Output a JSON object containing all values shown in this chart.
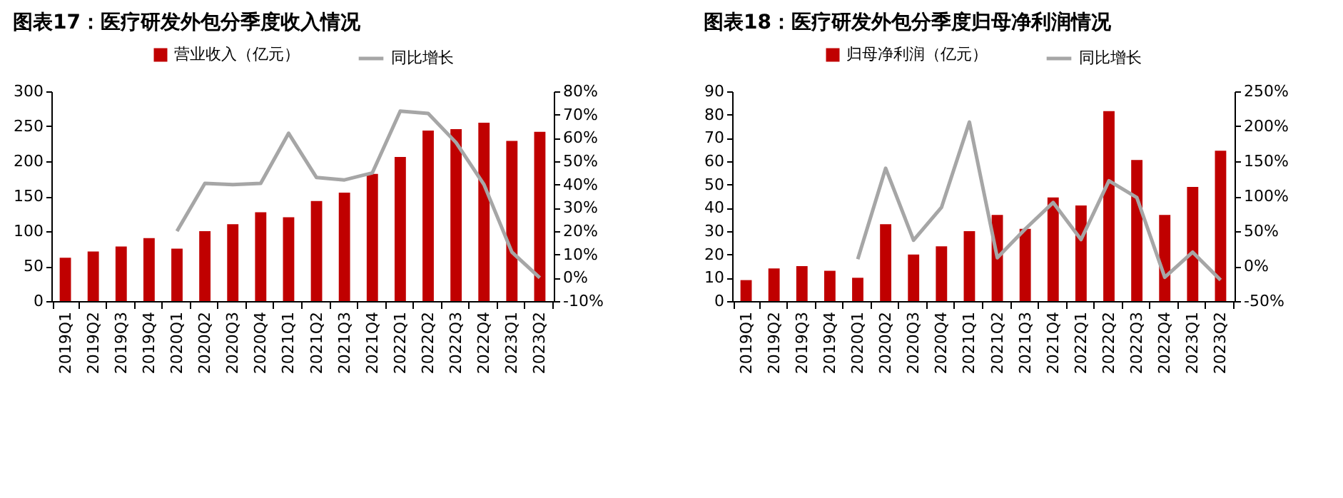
{
  "chart_data": [
    {
      "type": "bar",
      "title": "图表17：医疗研发外包分季度收入情况",
      "categories": [
        "2019Q1",
        "2019Q2",
        "2019Q3",
        "2019Q4",
        "2020Q1",
        "2020Q2",
        "2020Q3",
        "2020Q4",
        "2021Q1",
        "2021Q2",
        "2021Q3",
        "2021Q4",
        "2022Q1",
        "2022Q2",
        "2022Q3",
        "2022Q4",
        "2023Q1",
        "2023Q2"
      ],
      "series": [
        {
          "name": "营业收入（亿元）",
          "color": "#c00000",
          "values": [
            62,
            71,
            78,
            90,
            75,
            100,
            110,
            127,
            120,
            143,
            155,
            182,
            206,
            244,
            246,
            255,
            229,
            242
          ]
        },
        {
          "name": "同比增长",
          "type": "line",
          "axis": "y2",
          "color": "#a6a6a6",
          "values": [
            null,
            null,
            null,
            null,
            20,
            40.5,
            40,
            40.5,
            62,
            43,
            42,
            45,
            71.5,
            70.5,
            58,
            40,
            11,
            0
          ]
        }
      ],
      "ylim": [
        0,
        300
      ],
      "yticks": [
        0,
        50,
        100,
        150,
        200,
        250,
        300
      ],
      "y2lim": [
        -10,
        80
      ],
      "y2ticks": [
        {
          "value": -10,
          "label": "-10%"
        },
        {
          "value": 0,
          "label": "0%"
        },
        {
          "value": 10,
          "label": "10%"
        },
        {
          "value": 20,
          "label": "20%"
        },
        {
          "value": 30,
          "label": "30%"
        },
        {
          "value": 40,
          "label": "40%"
        },
        {
          "value": 50,
          "label": "50%"
        },
        {
          "value": 60,
          "label": "60%"
        },
        {
          "value": 70,
          "label": "70%"
        },
        {
          "value": 80,
          "label": "80%"
        }
      ],
      "legend": "top",
      "grid": false
    },
    {
      "type": "bar",
      "title": "图表18：医疗研发外包分季度归母净利润情况",
      "categories": [
        "2019Q1",
        "2019Q2",
        "2019Q3",
        "2019Q4",
        "2020Q1",
        "2020Q2",
        "2020Q3",
        "2020Q4",
        "2021Q1",
        "2021Q2",
        "2021Q3",
        "2021Q4",
        "2022Q1",
        "2022Q2",
        "2022Q3",
        "2022Q4",
        "2023Q1",
        "2023Q2"
      ],
      "series": [
        {
          "name": "归母净利润（亿元）",
          "color": "#c00000",
          "values": [
            9,
            14,
            15,
            13,
            10,
            33,
            20,
            23.5,
            30,
            37,
            31,
            44.5,
            41,
            81.5,
            60.5,
            37,
            49,
            64.5
          ]
        },
        {
          "name": "同比增长",
          "type": "line",
          "axis": "y2",
          "color": "#a6a6a6",
          "values": [
            null,
            null,
            null,
            null,
            10,
            140,
            37,
            84,
            206,
            12,
            53,
            91,
            38,
            122,
            98,
            -16,
            20,
            -20
          ]
        }
      ],
      "ylim": [
        0,
        90
      ],
      "yticks": [
        0,
        10,
        20,
        30,
        40,
        50,
        60,
        70,
        80,
        90
      ],
      "y2lim": [
        -50,
        250
      ],
      "y2ticks": [
        {
          "value": -50,
          "label": "-50%"
        },
        {
          "value": 0,
          "label": "0%"
        },
        {
          "value": 50,
          "label": "50%"
        },
        {
          "value": 100,
          "label": "100%"
        },
        {
          "value": 150,
          "label": "150%"
        },
        {
          "value": 200,
          "label": "200%"
        },
        {
          "value": 250,
          "label": "250%"
        }
      ],
      "legend": "top",
      "grid": false
    }
  ]
}
